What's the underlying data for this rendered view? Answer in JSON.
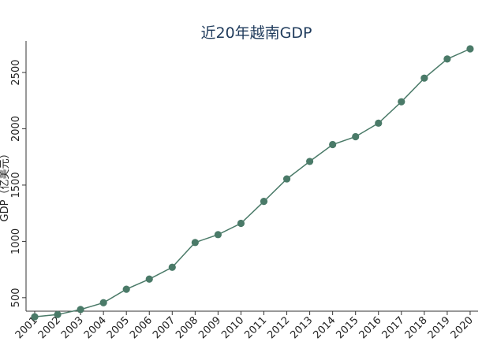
{
  "chart_data": {
    "type": "line",
    "title": "近20年越南GDP",
    "xlabel": "",
    "ylabel": "GDP（亿美元）",
    "ylim": [
      380,
      2780
    ],
    "yticks": [
      500,
      1000,
      1500,
      2000,
      2500
    ],
    "grid": false,
    "series": [
      {
        "color": "#4a7a68",
        "x": [
          "2001",
          "2002",
          "2003",
          "2004",
          "2005",
          "2006",
          "2007",
          "2008",
          "2009",
          "2010",
          "2011",
          "2012",
          "2013",
          "2014",
          "2015",
          "2016",
          "2017",
          "2018",
          "2019",
          "2020"
        ],
        "values": [
          330,
          350,
          395,
          455,
          575,
          665,
          770,
          990,
          1060,
          1160,
          1355,
          1555,
          1710,
          1860,
          1930,
          2050,
          2240,
          2450,
          2620,
          2710
        ]
      }
    ]
  }
}
